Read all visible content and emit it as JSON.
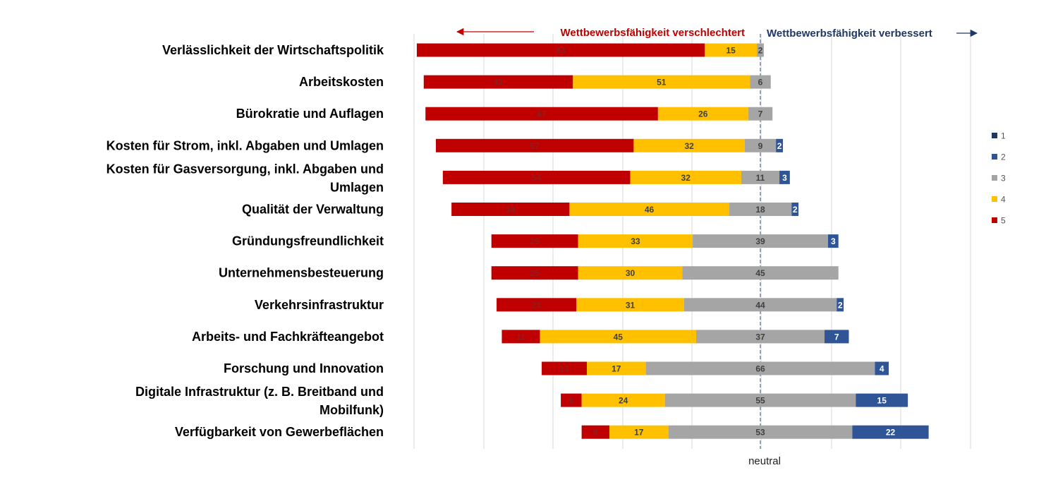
{
  "chart_data": {
    "type": "bar",
    "orientation": "horizontal",
    "stacked": true,
    "categories": [
      "Verlässlichkeit der Wirtschaftspolitik",
      "Arbeitskosten",
      "Bürokratie und Auflagen",
      "Kosten für Strom, inkl. Abgaben und Umlagen",
      "Kosten für Gasversorgung, inkl. Abgaben und Umlagen",
      "Qualität der Verwaltung",
      "Gründungsfreundlichkeit",
      "Unternehmensbesteuerung",
      "Verkehrsinfrastruktur",
      "Arbeits- und Fachkräfteangebot",
      "Forschung und Innovation",
      "Digitale Infrastruktur (z. B. Breitband und Mobilfunk)",
      "Verfügbarkeit von Gewerbeflächen"
    ],
    "series": [
      {
        "name": "5",
        "values": [
          83,
          43,
          67,
          57,
          54,
          34,
          25,
          25,
          23,
          11,
          13,
          6,
          8
        ]
      },
      {
        "name": "4",
        "values": [
          15,
          51,
          26,
          32,
          32,
          46,
          33,
          30,
          31,
          45,
          17,
          24,
          17
        ]
      },
      {
        "name": "3",
        "values": [
          2,
          6,
          7,
          9,
          11,
          18,
          39,
          45,
          44,
          37,
          66,
          55,
          53
        ]
      },
      {
        "name": "2",
        "values": [
          null,
          null,
          null,
          2,
          3,
          2,
          3,
          null,
          2,
          7,
          4,
          15,
          22
        ]
      },
      {
        "name": "1",
        "values": [
          null,
          null,
          null,
          null,
          null,
          null,
          null,
          null,
          null,
          null,
          null,
          null,
          null
        ]
      }
    ],
    "series_colors": {
      "5": "#C00000",
      "4": "#FFC000",
      "3": "#A5A5A5",
      "2": "#2F5597",
      "1": "#1F3864"
    },
    "legend": {
      "position": "right",
      "order": [
        "1",
        "2",
        "3",
        "4",
        "5"
      ]
    },
    "header_left": "Wettbewerbsfähigkeit verschlechtert",
    "header_right": "Wettbewerbsfähigkeit verbessert",
    "header_left_color": "#C00000",
    "header_right_color": "#203864",
    "neutral_label": "neutral",
    "grid": true
  }
}
